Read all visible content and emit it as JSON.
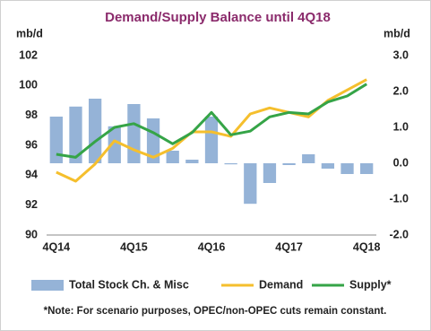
{
  "chart_data": {
    "type": "bar-line",
    "title": "Demand/Supply Balance until 4Q18",
    "y_label": "mb/d",
    "y2_label": "mb/d",
    "note": "*Note: For scenario purposes, OPEC/non-OPEC cuts remain constant.",
    "categories": [
      "4Q14",
      null,
      null,
      null,
      "4Q15",
      null,
      null,
      null,
      "4Q16",
      null,
      null,
      null,
      "4Q17",
      null,
      null,
      null,
      "4Q18"
    ],
    "series": [
      {
        "name": "Total Stock Ch. & Misc",
        "type": "bar",
        "axis": "y2",
        "color": "#95b3d7",
        "values": [
          1.3,
          1.58,
          1.8,
          1.03,
          1.65,
          1.25,
          0.35,
          0.1,
          1.3,
          -0.03,
          -1.13,
          -0.55,
          -0.05,
          0.25,
          -0.15,
          -0.3,
          -0.3
        ]
      },
      {
        "name": "Demand",
        "type": "line",
        "color": "#f5bf2d",
        "values": [
          94.2,
          93.6,
          94.75,
          96.3,
          95.7,
          95.2,
          95.8,
          96.9,
          96.9,
          96.6,
          98.1,
          98.5,
          98.2,
          97.9,
          99.0,
          99.7,
          100.4
        ]
      },
      {
        "name": "Supply*",
        "type": "line",
        "color": "#35a447",
        "values": [
          95.4,
          95.2,
          96.25,
          97.2,
          97.45,
          96.85,
          96.1,
          96.85,
          98.2,
          96.7,
          96.95,
          97.9,
          98.2,
          98.1,
          98.9,
          99.3,
          100.1
        ]
      }
    ],
    "ylim": [
      90,
      102
    ],
    "yticks": [
      90,
      92,
      94,
      96,
      98,
      100,
      102
    ],
    "y2lim": [
      -2,
      3
    ],
    "y2ticks": [
      {
        "value": -2,
        "label": "-2.0"
      },
      {
        "value": -1,
        "label": "-1.0"
      },
      {
        "value": 0,
        "label": "0.0"
      },
      {
        "value": 1,
        "label": "1.0"
      },
      {
        "value": 2,
        "label": "2.0"
      },
      {
        "value": 3,
        "label": "3.0"
      }
    ],
    "grid": false
  }
}
